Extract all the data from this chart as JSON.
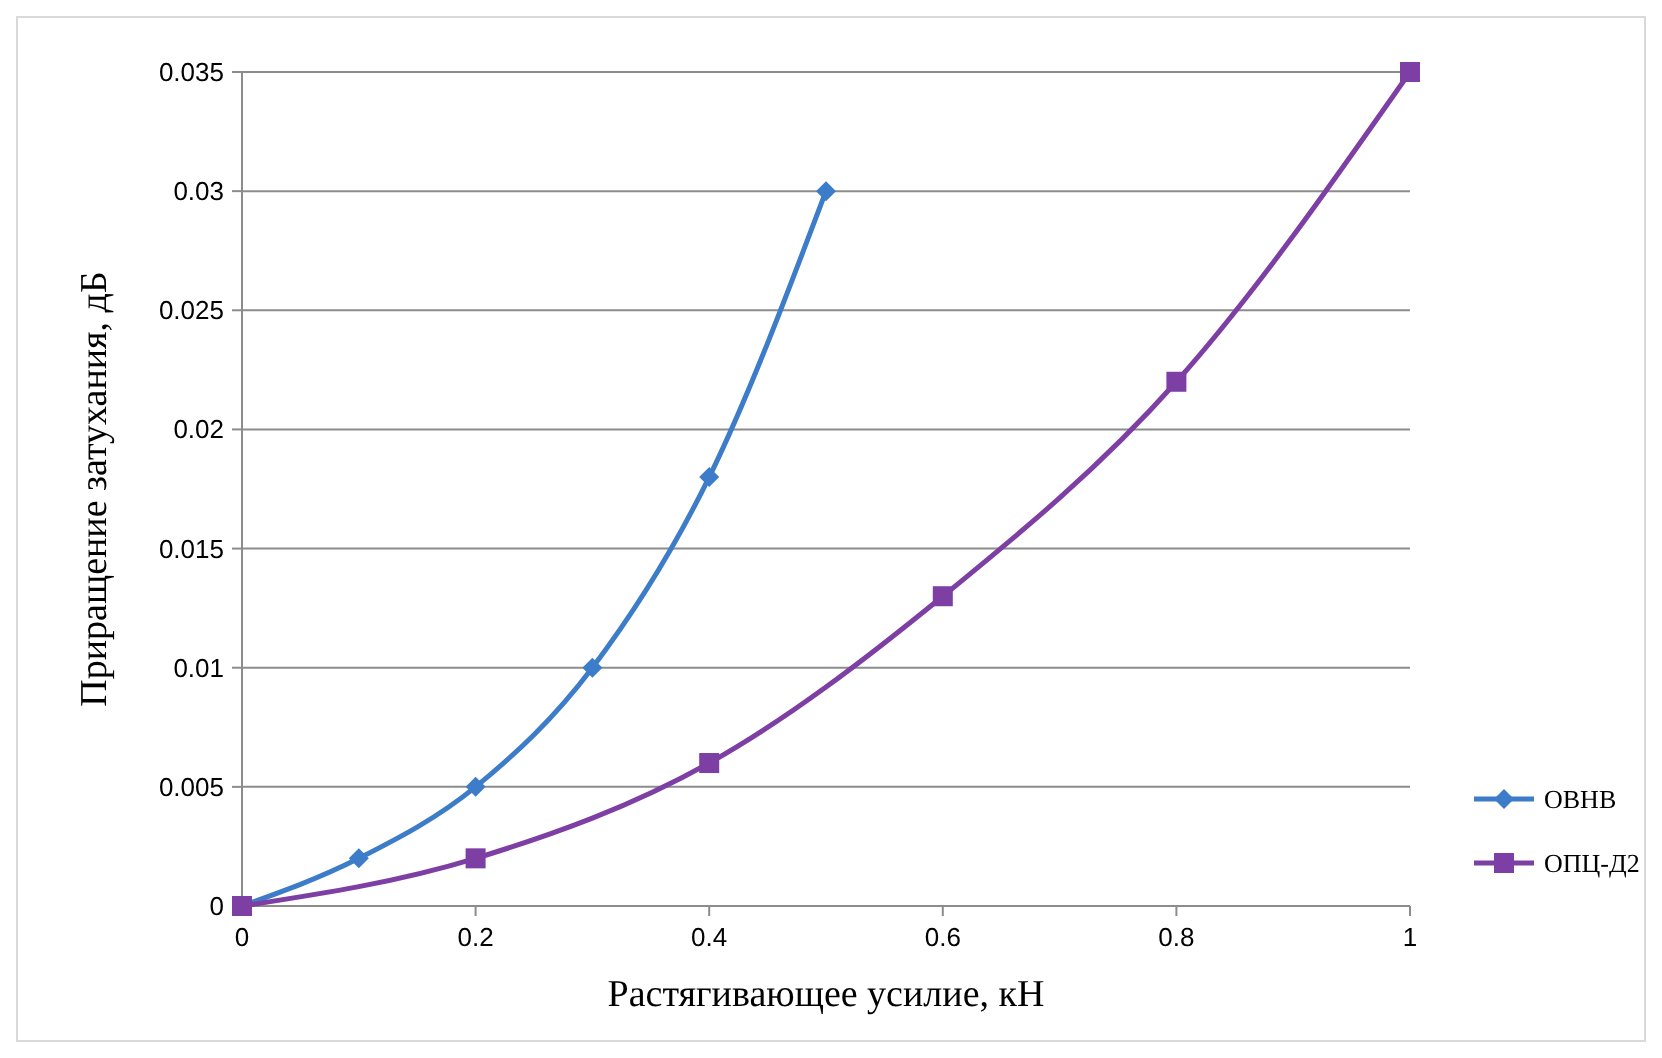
{
  "chart_data": {
    "type": "line",
    "xlabel": "Растягивающее усилие, кН",
    "ylabel": "Приращение затухания,  дБ",
    "xlim": [
      0,
      1
    ],
    "xticks": [
      0,
      0.2,
      0.4,
      0.6,
      0.8,
      1
    ],
    "ylim": [
      0,
      0.035
    ],
    "yticks": [
      0,
      0.005,
      0.01,
      0.015,
      0.02,
      0.025,
      0.03,
      0.035
    ],
    "grid": "y",
    "legend": "right",
    "line_style": "solid",
    "series": [
      {
        "name": "ОВНВ",
        "color": "#3d7cc9",
        "marker": "diamond",
        "x": [
          0,
          0.1,
          0.2,
          0.3,
          0.4,
          0.5
        ],
        "values": [
          0,
          0.002,
          0.005,
          0.01,
          0.018,
          0.03
        ]
      },
      {
        "name": "ОПЦ-Д2",
        "color": "#7d3fa3",
        "marker": "square",
        "x": [
          0,
          0.2,
          0.4,
          0.6,
          0.8,
          1
        ],
        "values": [
          0,
          0.002,
          0.006,
          0.013,
          0.022,
          0.035
        ]
      }
    ]
  }
}
